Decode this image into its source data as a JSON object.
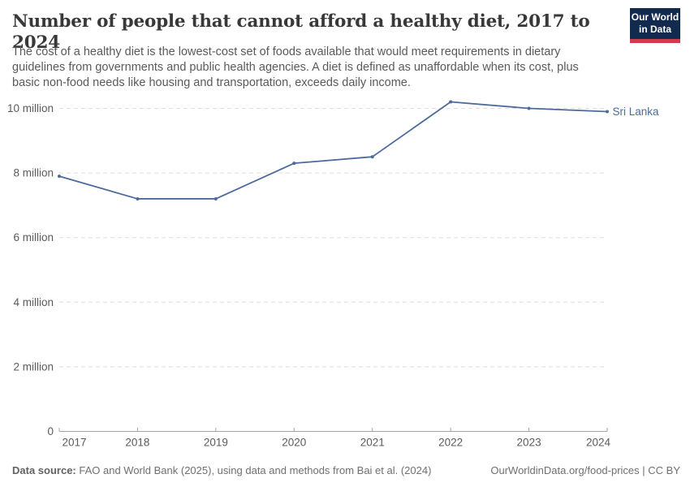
{
  "header": {
    "title": "Number of people that cannot afford a healthy diet, 2017 to 2024",
    "subtitle_lines": [
      "The cost of a healthy diet is the lowest-cost set of foods available that would meet requirements in dietary",
      "guidelines from governments and public health agencies. A diet is defined as unaffordable when its cost, plus",
      "basic non-food needs like housing and transportation, exceeds daily income."
    ]
  },
  "logo": {
    "line1": "Our World",
    "line2": "in Data",
    "bg_color": "#122a4e",
    "bar_color": "#d13b4b",
    "text_color": "#ffffff"
  },
  "chart_data": {
    "type": "line",
    "title": "Number of people that cannot afford a healthy diet, 2017 to 2024",
    "entity": "Sri Lanka",
    "unit": "million people",
    "years": [
      2017,
      2018,
      2019,
      2020,
      2021,
      2022,
      2023,
      2024
    ],
    "series": [
      {
        "name": "Sri Lanka",
        "values": [
          7.9,
          7.2,
          7.2,
          8.3,
          8.5,
          10.2,
          10.0,
          9.9
        ]
      }
    ],
    "ylim": [
      0,
      10.5
    ],
    "y_ticks": [
      {
        "value": 0,
        "label": "0"
      },
      {
        "value": 2,
        "label": "2 million"
      },
      {
        "value": 4,
        "label": "4 million"
      },
      {
        "value": 6,
        "label": "6 million"
      },
      {
        "value": 8,
        "label": "8 million"
      },
      {
        "value": 10,
        "label": "10 million"
      }
    ],
    "grid": "horizontal-dashed",
    "legend_position": "line-end-label",
    "line_color": "#4c6a9c",
    "gridline_color": "#dedede",
    "axis_color": "#a5a5a5",
    "axis_text_color": "#5b5b5b"
  },
  "footer": {
    "datasource_label": "Data source:",
    "datasource_text": "FAO and World Bank (2025), using data and methods from Bai et al. (2024)",
    "attribution": "OurWorldinData.org/food-prices | CC BY"
  }
}
